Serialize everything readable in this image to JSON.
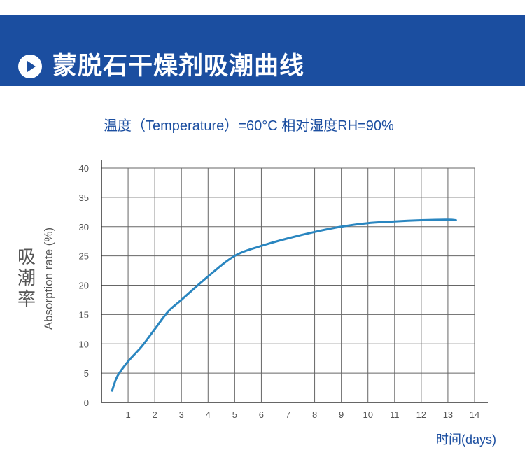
{
  "header": {
    "title": "蒙脱石干燥剂吸潮曲线",
    "play_icon": "play-circle-icon",
    "background_color": "#1b4ea0"
  },
  "chart_data": {
    "type": "line",
    "title": "",
    "subtitle": "温度（Temperature）=60°C   相对湿度RH=90%",
    "ylabel_cn": "吸潮率",
    "ylabel_en": "Absorption rate (%)",
    "xlabel": "时间(days)",
    "xlim": [
      0,
      14
    ],
    "ylim": [
      0,
      40
    ],
    "x_ticks": [
      1,
      2,
      3,
      4,
      5,
      6,
      7,
      8,
      9,
      10,
      11,
      12,
      13,
      14
    ],
    "y_ticks": [
      0,
      5,
      10,
      15,
      20,
      25,
      30,
      35,
      40
    ],
    "grid": true,
    "line_color": "#2a86c0",
    "series": [
      {
        "x": [
          0.4,
          0.6,
          1.0,
          1.5,
          2.0,
          2.5,
          3.0,
          4.0,
          5.0,
          6.0,
          7.0,
          8.0,
          9.0,
          10.0,
          11.0,
          12.0,
          13.0,
          13.3
        ],
        "values": [
          2,
          4.5,
          7.0,
          9.5,
          12.5,
          15.5,
          17.5,
          21.5,
          25.0,
          26.7,
          28.0,
          29.1,
          30.0,
          30.6,
          30.9,
          31.1,
          31.2,
          31.1
        ]
      }
    ]
  }
}
